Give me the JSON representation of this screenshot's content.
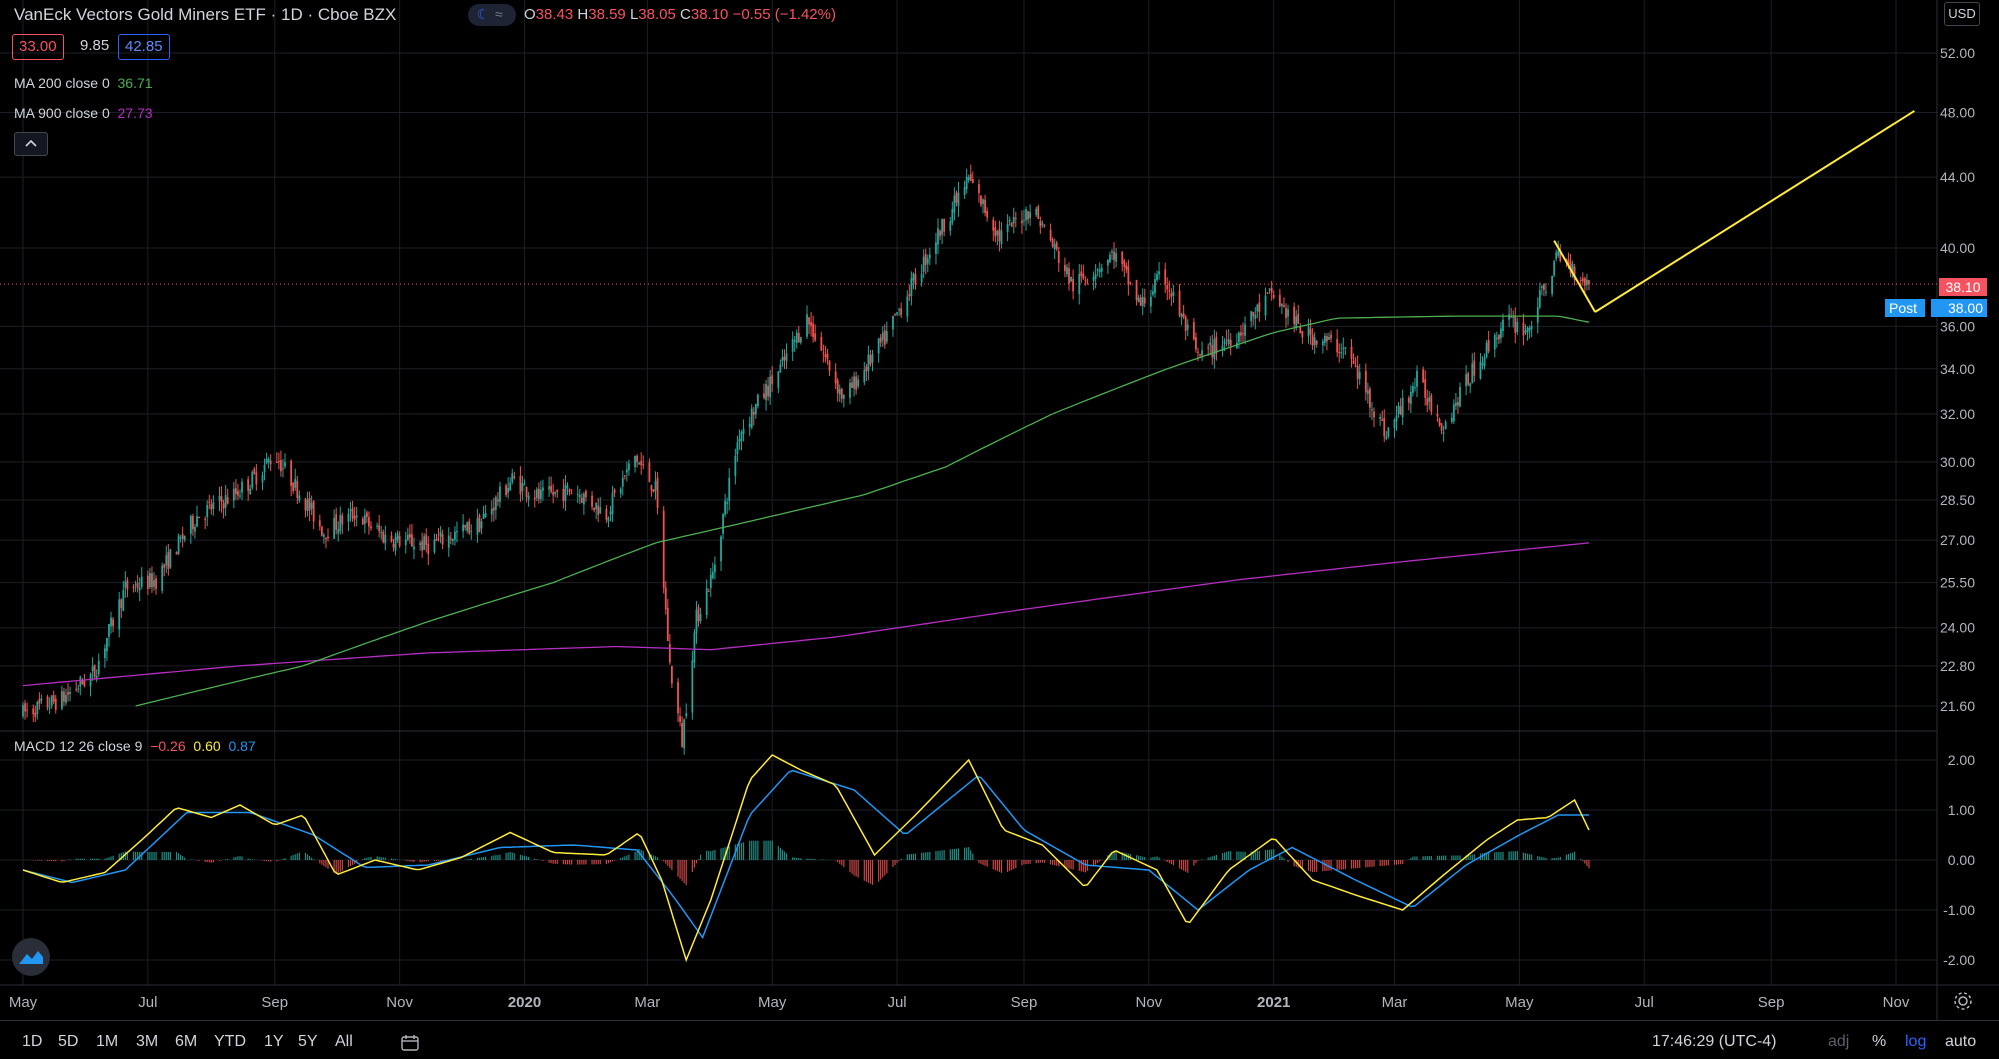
{
  "header": {
    "title": "VanEck Vectors Gold Miners ETF · 1D · Cboe BZX",
    "ohlc": {
      "o_label": "O",
      "o": "38.43",
      "h_label": "H",
      "h": "38.59",
      "l_label": "L",
      "l": "38.05",
      "c_label": "C",
      "c": "38.10",
      "change": "−0.55 (−1.42%)"
    },
    "bid": "33.00",
    "spread": "9.85",
    "ask": "42.85",
    "ma200_label": "MA 200 close 0",
    "ma200_value": "36.71",
    "ma900_label": "MA 900 close 0",
    "ma900_value": "27.73",
    "macd_label": "MACD 12 26 close 9",
    "macd_hist": "−0.26",
    "macd_line": "0.60",
    "macd_signal": "0.87"
  },
  "price_scale": {
    "currency": "USD",
    "last_price": "38.10",
    "post_label": "Post",
    "post_price": "38.00"
  },
  "colors": {
    "up": "#26a69a",
    "down": "#ef5350",
    "ma200": "#4caf50",
    "ma900": "#b42ec1",
    "trend": "#ffeb3b",
    "macd": "#ffeb3b",
    "signal": "#2196f3"
  },
  "bottom_bar": {
    "ranges": [
      "1D",
      "5D",
      "1M",
      "3M",
      "6M",
      "YTD",
      "1Y",
      "5Y",
      "All"
    ],
    "time": "17:46:29 (UTC-4)",
    "adj": "adj",
    "pct": "%",
    "log": "log",
    "auto": "auto"
  },
  "chart_data": [
    {
      "type": "candlestick",
      "scale": "log",
      "y_ticks": [
        "52.00",
        "48.00",
        "44.00",
        "40.00",
        "36.00",
        "34.00",
        "32.00",
        "30.00",
        "28.50",
        "27.00",
        "25.50",
        "24.00",
        "22.80",
        "21.60"
      ],
      "x_ticks": [
        "May",
        "Jul",
        "Sep",
        "Nov",
        "2020",
        "Mar",
        "May",
        "Jul",
        "Sep",
        "Nov",
        "2021",
        "Mar",
        "May",
        "Jul",
        "Sep",
        "Nov"
      ],
      "anchors": [
        [
          "2019-05-01",
          21.4
        ],
        [
          "2019-05-20",
          21.8
        ],
        [
          "2019-06-05",
          22.6
        ],
        [
          "2019-06-20",
          25.3
        ],
        [
          "2019-07-05",
          25.6
        ],
        [
          "2019-07-25",
          27.9
        ],
        [
          "2019-08-10",
          28.6
        ],
        [
          "2019-08-20",
          29.2
        ],
        [
          "2019-09-01",
          30.3
        ],
        [
          "2019-09-25",
          27.3
        ],
        [
          "2019-10-10",
          28.0
        ],
        [
          "2019-10-25",
          27.1
        ],
        [
          "2019-11-15",
          26.8
        ],
        [
          "2019-12-10",
          27.6
        ],
        [
          "2019-12-26",
          29.3
        ],
        [
          "2020-01-08",
          28.6
        ],
        [
          "2020-01-25",
          28.9
        ],
        [
          "2020-02-10",
          28.0
        ],
        [
          "2020-02-24",
          30.2
        ],
        [
          "2020-03-05",
          28.9
        ],
        [
          "2020-03-12",
          22.8
        ],
        [
          "2020-03-18",
          20.6
        ],
        [
          "2020-03-25",
          24.3
        ],
        [
          "2020-04-02",
          25.8
        ],
        [
          "2020-04-15",
          31.2
        ],
        [
          "2020-05-05",
          34.0
        ],
        [
          "2020-05-18",
          36.4
        ],
        [
          "2020-06-05",
          32.6
        ],
        [
          "2020-06-25",
          35.4
        ],
        [
          "2020-07-10",
          38.4
        ],
        [
          "2020-08-05",
          43.9
        ],
        [
          "2020-08-20",
          40.6
        ],
        [
          "2020-09-05",
          42.3
        ],
        [
          "2020-09-25",
          38.0
        ],
        [
          "2020-10-15",
          39.7
        ],
        [
          "2020-10-28",
          37.0
        ],
        [
          "2020-11-08",
          38.6
        ],
        [
          "2020-11-25",
          34.5
        ],
        [
          "2020-12-15",
          35.7
        ],
        [
          "2020-12-31",
          37.6
        ],
        [
          "2021-01-15",
          35.7
        ],
        [
          "2021-02-05",
          34.9
        ],
        [
          "2021-02-25",
          31.1
        ],
        [
          "2021-03-12",
          33.5
        ],
        [
          "2021-03-25",
          31.5
        ],
        [
          "2021-04-10",
          34.2
        ],
        [
          "2021-04-25",
          36.3
        ],
        [
          "2021-05-05",
          35.8
        ],
        [
          "2021-05-20",
          39.6
        ],
        [
          "2021-06-04",
          38.1
        ]
      ],
      "ma200": [
        [
          "2019-06-25",
          21.6
        ],
        [
          "2019-09-15",
          22.8
        ],
        [
          "2019-11-15",
          24.2
        ],
        [
          "2020-01-15",
          25.5
        ],
        [
          "2020-03-05",
          26.9
        ],
        [
          "2020-04-15",
          27.6
        ],
        [
          "2020-06-15",
          28.7
        ],
        [
          "2020-07-25",
          29.8
        ],
        [
          "2020-09-15",
          32.0
        ],
        [
          "2020-11-10",
          34.0
        ],
        [
          "2021-01-01",
          35.7
        ],
        [
          "2021-02-01",
          36.4
        ],
        [
          "2021-04-01",
          36.5
        ],
        [
          "2021-05-20",
          36.5
        ],
        [
          "2021-06-04",
          36.2
        ]
      ],
      "ma900": [
        [
          "2019-05-01",
          22.2
        ],
        [
          "2019-08-15",
          22.8
        ],
        [
          "2019-11-15",
          23.2
        ],
        [
          "2020-02-15",
          23.4
        ],
        [
          "2020-04-01",
          23.3
        ],
        [
          "2020-06-01",
          23.7
        ],
        [
          "2020-09-01",
          24.6
        ],
        [
          "2020-12-15",
          25.6
        ],
        [
          "2021-03-01",
          26.2
        ],
        [
          "2021-06-04",
          26.9
        ]
      ],
      "trend_lines": [
        {
          "from": [
            "2021-05-18",
            40.4
          ],
          "to": [
            "2021-06-07",
            36.7
          ]
        },
        {
          "from": [
            "2021-06-07",
            36.7
          ],
          "to": [
            "2021-11-10",
            48.1
          ]
        }
      ],
      "last_price_line": 38.1
    },
    {
      "type": "macd",
      "y_ticks": [
        "2.00",
        "1.00",
        "0.00",
        "-1.00",
        "-2.00"
      ],
      "macd_anchors": [
        [
          "2019-05-01",
          -0.2
        ],
        [
          "2019-05-20",
          -0.45
        ],
        [
          "2019-06-10",
          -0.25
        ],
        [
          "2019-06-28",
          0.4
        ],
        [
          "2019-07-15",
          1.05
        ],
        [
          "2019-08-01",
          0.85
        ],
        [
          "2019-08-15",
          1.1
        ],
        [
          "2019-09-01",
          0.7
        ],
        [
          "2019-09-15",
          0.9
        ],
        [
          "2019-10-01",
          -0.3
        ],
        [
          "2019-10-20",
          0.0
        ],
        [
          "2019-11-10",
          -0.2
        ],
        [
          "2019-12-01",
          0.05
        ],
        [
          "2019-12-25",
          0.55
        ],
        [
          "2020-01-15",
          0.15
        ],
        [
          "2020-02-10",
          0.1
        ],
        [
          "2020-02-26",
          0.55
        ],
        [
          "2020-03-08",
          -0.4
        ],
        [
          "2020-03-20",
          -2.0
        ],
        [
          "2020-04-01",
          -0.8
        ],
        [
          "2020-04-20",
          1.6
        ],
        [
          "2020-05-01",
          2.1
        ],
        [
          "2020-05-15",
          1.8
        ],
        [
          "2020-06-01",
          1.5
        ],
        [
          "2020-06-20",
          0.1
        ],
        [
          "2020-07-10",
          0.9
        ],
        [
          "2020-08-05",
          2.0
        ],
        [
          "2020-08-22",
          0.6
        ],
        [
          "2020-09-10",
          0.3
        ],
        [
          "2020-10-01",
          -0.55
        ],
        [
          "2020-10-15",
          0.2
        ],
        [
          "2020-11-05",
          -0.2
        ],
        [
          "2020-11-20",
          -1.3
        ],
        [
          "2020-12-10",
          -0.2
        ],
        [
          "2021-01-01",
          0.45
        ],
        [
          "2021-01-20",
          -0.4
        ],
        [
          "2021-02-10",
          -0.7
        ],
        [
          "2021-03-05",
          -1.0
        ],
        [
          "2021-03-25",
          -0.3
        ],
        [
          "2021-04-15",
          0.4
        ],
        [
          "2021-04-30",
          0.8
        ],
        [
          "2021-05-15",
          0.85
        ],
        [
          "2021-05-28",
          1.2
        ],
        [
          "2021-06-04",
          0.6
        ]
      ],
      "signal_anchors": [
        [
          "2019-05-01",
          -0.2
        ],
        [
          "2019-05-25",
          -0.45
        ],
        [
          "2019-06-20",
          -0.2
        ],
        [
          "2019-07-20",
          0.95
        ],
        [
          "2019-08-20",
          0.95
        ],
        [
          "2019-09-20",
          0.5
        ],
        [
          "2019-10-15",
          -0.15
        ],
        [
          "2019-11-15",
          -0.1
        ],
        [
          "2019-12-20",
          0.25
        ],
        [
          "2020-01-25",
          0.3
        ],
        [
          "2020-02-25",
          0.2
        ],
        [
          "2020-03-15",
          -0.8
        ],
        [
          "2020-03-28",
          -1.55
        ],
        [
          "2020-04-20",
          0.9
        ],
        [
          "2020-05-10",
          1.8
        ],
        [
          "2020-06-10",
          1.4
        ],
        [
          "2020-07-05",
          0.5
        ],
        [
          "2020-08-10",
          1.7
        ],
        [
          "2020-09-01",
          0.6
        ],
        [
          "2020-10-01",
          -0.1
        ],
        [
          "2020-11-01",
          -0.2
        ],
        [
          "2020-11-25",
          -1.0
        ],
        [
          "2020-12-20",
          -0.2
        ],
        [
          "2021-01-10",
          0.25
        ],
        [
          "2021-02-10",
          -0.4
        ],
        [
          "2021-03-10",
          -0.95
        ],
        [
          "2021-04-05",
          -0.1
        ],
        [
          "2021-05-01",
          0.5
        ],
        [
          "2021-05-20",
          0.9
        ],
        [
          "2021-06-04",
          0.9
        ]
      ]
    }
  ]
}
